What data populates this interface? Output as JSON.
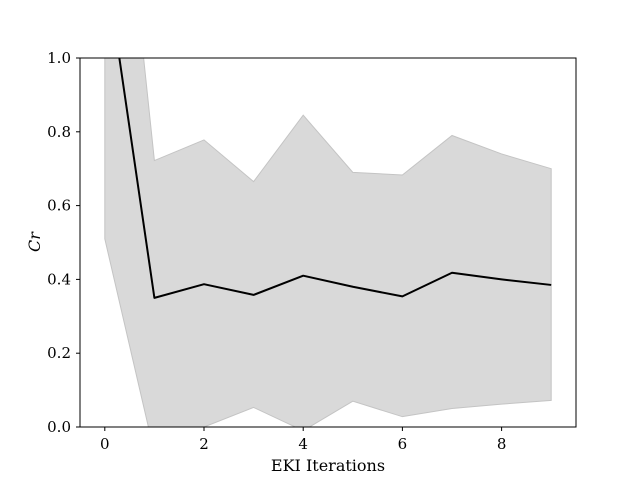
{
  "chart_data": {
    "type": "line",
    "xlabel": "EKI Iterations",
    "ylabel": "Cr",
    "xlim": [
      -0.5,
      9.5
    ],
    "ylim": [
      0.0,
      1.0
    ],
    "xticks": [
      0,
      2,
      4,
      6,
      8
    ],
    "yticks": [
      0.0,
      0.2,
      0.4,
      0.6,
      0.8,
      1.0
    ],
    "xtick_labels": [
      "0",
      "2",
      "4",
      "6",
      "8"
    ],
    "ytick_labels": [
      "0.0",
      "0.2",
      "0.4",
      "0.6",
      "0.8",
      "1.0"
    ],
    "grid": false,
    "x": [
      0,
      1,
      2,
      3,
      4,
      5,
      6,
      7,
      8,
      9
    ],
    "series": [
      {
        "values": [
          1.27,
          0.35,
          0.387,
          0.358,
          0.41,
          0.38,
          0.354,
          0.418,
          0.4,
          0.385
        ],
        "color": "#000000"
      }
    ],
    "band": {
      "lower": [
        0.51,
        -0.07,
        0.0,
        0.053,
        -0.01,
        0.07,
        0.028,
        0.05,
        0.062,
        0.072
      ],
      "upper": [
        2.0,
        0.722,
        0.778,
        0.665,
        0.845,
        0.69,
        0.683,
        0.79,
        0.74,
        0.7
      ],
      "color": "#d9d9d9",
      "edge_color": "#c4c4c4"
    }
  }
}
